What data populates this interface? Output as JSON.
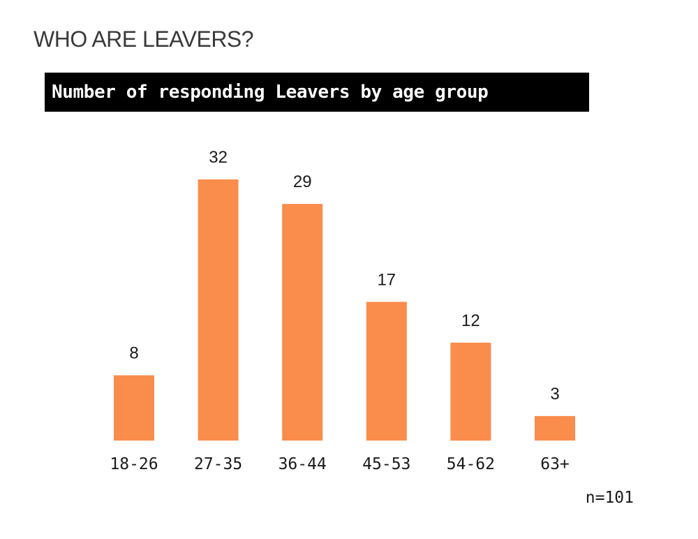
{
  "heading": "WHO ARE LEAVERS?",
  "chart_data": {
    "type": "bar",
    "title": "Number of responding Leavers by age group",
    "categories": [
      "18-26",
      "27-35",
      "36-44",
      "45-53",
      "54-62",
      "63+"
    ],
    "values": [
      8,
      32,
      29,
      17,
      12,
      3
    ],
    "value_labels": [
      "8",
      "32",
      "29",
      "17",
      "12",
      "3"
    ],
    "bar_color": "#FA8C4C",
    "xlabel": "",
    "ylabel": "",
    "ylim": [
      0,
      32
    ],
    "grid": false,
    "annotation": "n=101"
  }
}
